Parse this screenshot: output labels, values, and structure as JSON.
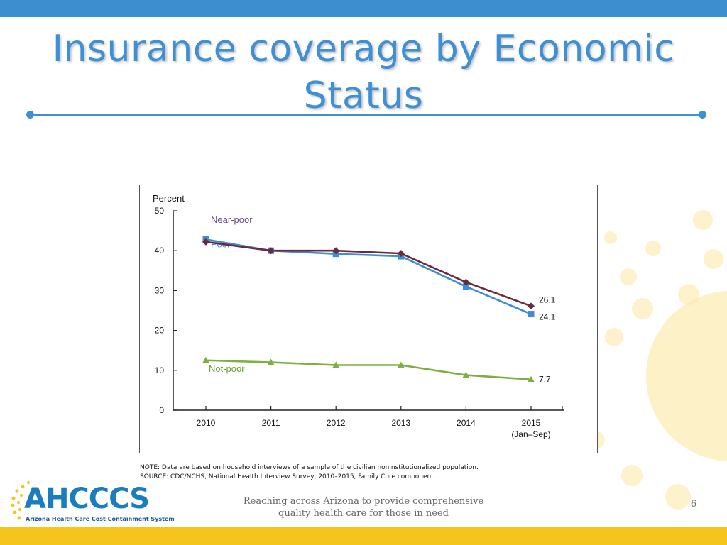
{
  "slide": {
    "title_line1": "Insurance coverage by Economic",
    "title_line2": "Status",
    "footer_line1": "Reaching across Arizona to provide comprehensive",
    "footer_line2": "quality health care for those in need",
    "slide_number": "6",
    "logo_text": "AHCCCS",
    "logo_subtitle": "Arizona Health Care Cost Containment System",
    "note": "NOTE: Data are based on household interviews of a sample of the civilian noninstitutionalized population.",
    "source": "SOURCE: CDC/NCHS, National Health Interview Survey, 2010–2015, Family Core component."
  },
  "colors": {
    "header_bar": "#3b8ed0",
    "title": "#3f8fd4",
    "footer_bar": "#f5c51d",
    "near_poor": "#6b2a3f",
    "poor": "#3d8fd4",
    "not_poor": "#7db041"
  },
  "chart_data": {
    "type": "line",
    "ylabel": "Percent",
    "ylim": [
      0,
      50
    ],
    "yticks": [
      0,
      10,
      20,
      30,
      40,
      50
    ],
    "categories": [
      "2010",
      "2011",
      "2012",
      "2013",
      "2014",
      "2015"
    ],
    "category_sublabels": [
      "",
      "",
      "",
      "",
      "",
      "(Jan–Sep)"
    ],
    "grid": false,
    "series": [
      {
        "name": "Near-poor",
        "color": "#6b2a3f",
        "marker": "diamond",
        "values": [
          42.2,
          40.0,
          40.0,
          39.3,
          32.1,
          26.1
        ],
        "end_label": "26.1"
      },
      {
        "name": "Poor",
        "color": "#3d8fd4",
        "marker": "square",
        "values": [
          42.8,
          40.0,
          39.2,
          38.6,
          31.0,
          24.1
        ],
        "end_label": "24.1"
      },
      {
        "name": "Not-poor",
        "color": "#7db041",
        "marker": "triangle",
        "values": [
          12.5,
          12.0,
          11.3,
          11.3,
          8.8,
          7.7
        ],
        "end_label": "7.7"
      }
    ]
  }
}
